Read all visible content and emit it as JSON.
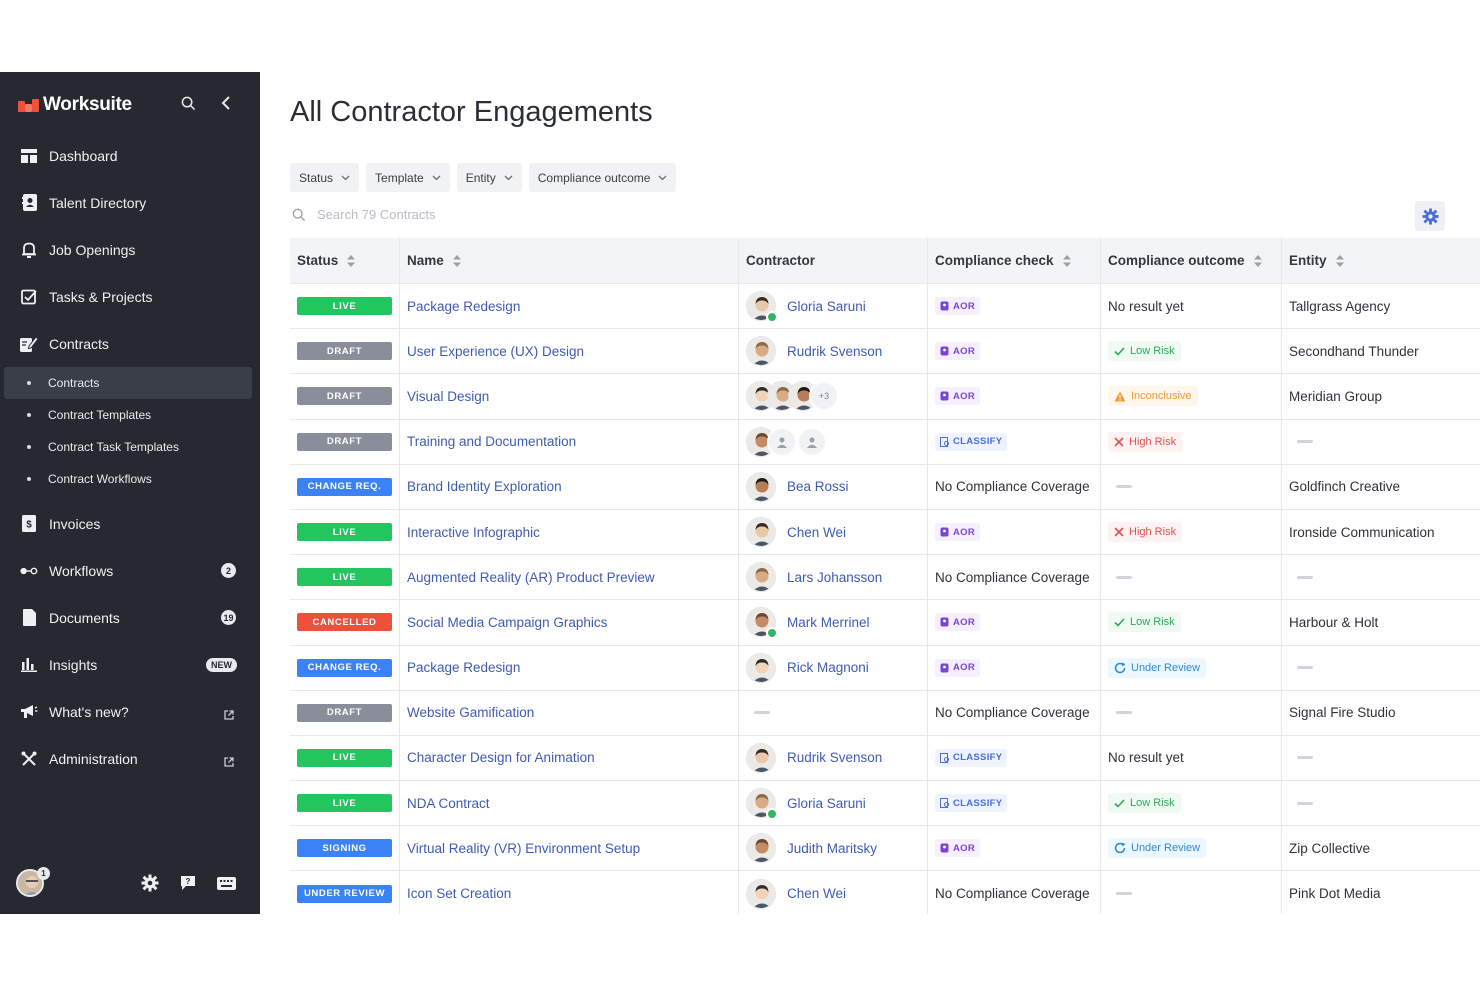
{
  "app": {
    "brand": "Worksuite",
    "page_title": "All Contractor Engagements"
  },
  "colors": {
    "sidebar_bg": "#262a30",
    "brand_accent": "#f0513d",
    "link": "#3f5bb3",
    "live": "#22c55e",
    "draft": "#8a8e9a",
    "change_req": "#3b82f6",
    "cancelled": "#f04f3c",
    "signing": "#3b82f6",
    "under_review": "#3b82f6"
  },
  "sidebar": {
    "items": [
      {
        "label": "Dashboard",
        "icon": "dashboard-icon"
      },
      {
        "label": "Talent Directory",
        "icon": "contacts-book-icon"
      },
      {
        "label": "Job Openings",
        "icon": "bell-icon"
      },
      {
        "label": "Tasks & Projects",
        "icon": "checkbox-icon"
      },
      {
        "label": "Contracts",
        "icon": "contract-signature-icon"
      }
    ],
    "sub_items": [
      {
        "label": "Contracts",
        "active": true
      },
      {
        "label": "Contract Templates",
        "active": false
      },
      {
        "label": "Contract Task Templates",
        "active": false
      },
      {
        "label": "Contract Workflows",
        "active": false
      }
    ],
    "items2": [
      {
        "label": "Invoices",
        "icon": "invoice-icon"
      },
      {
        "label": "Workflows",
        "icon": "workflow-icon",
        "badge": "2"
      },
      {
        "label": "Documents",
        "icon": "document-icon",
        "badge": "19"
      },
      {
        "label": "Insights",
        "icon": "bar-chart-icon",
        "badge": "NEW"
      },
      {
        "label": "What's new?",
        "icon": "megaphone-icon",
        "external": true
      },
      {
        "label": "Administration",
        "icon": "tools-icon",
        "external": true
      }
    ],
    "footer": {
      "notification_count": "1"
    }
  },
  "filters": [
    {
      "label": "Status"
    },
    {
      "label": "Template"
    },
    {
      "label": "Entity"
    },
    {
      "label": "Compliance outcome"
    }
  ],
  "search": {
    "placeholder": "Search 79 Contracts"
  },
  "table": {
    "headers": {
      "status": "Status",
      "name": "Name",
      "contractor": "Contractor",
      "compliance_check": "Compliance check",
      "compliance_outcome": "Compliance outcome",
      "entity": "Entity"
    },
    "rows": [
      {
        "status": "LIVE",
        "name": "Package Redesign",
        "contractor": "Gloria Saruni",
        "check": "AOR",
        "outcome": "No result yet",
        "outcome_type": "text",
        "entity": "Tallgrass Agency"
      },
      {
        "status": "DRAFT",
        "name": "User Experience (UX) Design",
        "contractor": "Rudrik Svenson",
        "check": "AOR",
        "outcome": "Low Risk",
        "outcome_type": "low",
        "entity": "Secondhand Thunder"
      },
      {
        "status": "DRAFT",
        "name": "Visual Design",
        "contractor": "",
        "contractor_more": "+3",
        "check": "AOR",
        "outcome": "Inconclusive",
        "outcome_type": "inconclusive",
        "entity": "Meridian Group"
      },
      {
        "status": "DRAFT",
        "name": "Training and Documentation",
        "contractor": "",
        "check": "CLASSIFY",
        "outcome": "High Risk",
        "outcome_type": "high",
        "entity": ""
      },
      {
        "status": "CHANGE REQ.",
        "name": "Brand Identity Exploration",
        "contractor": "Bea Rossi",
        "check": "No Compliance Coverage",
        "outcome": "",
        "outcome_type": "none",
        "entity": "Goldfinch Creative"
      },
      {
        "status": "LIVE",
        "name": "Interactive Infographic",
        "contractor": "Chen Wei",
        "check": "AOR",
        "outcome": "High Risk",
        "outcome_type": "high",
        "entity": "Ironside Communication"
      },
      {
        "status": "LIVE",
        "name": "Augmented Reality (AR) Product Preview",
        "contractor": "Lars Johansson",
        "check": "No Compliance Coverage",
        "outcome": "",
        "outcome_type": "none",
        "entity": ""
      },
      {
        "status": "CANCELLED",
        "name": "Social Media Campaign Graphics",
        "contractor": "Mark Merrinel",
        "check": "AOR",
        "outcome": "Low Risk",
        "outcome_type": "low",
        "entity": "Harbour & Holt"
      },
      {
        "status": "CHANGE REQ.",
        "name": "Package Redesign",
        "contractor": "Rick Magnoni",
        "check": "AOR",
        "outcome": "Under Review",
        "outcome_type": "review",
        "entity": ""
      },
      {
        "status": "DRAFT",
        "name": "Website Gamification",
        "contractor": "",
        "check": "No Compliance Coverage",
        "outcome": "",
        "outcome_type": "none",
        "entity": "Signal Fire Studio"
      },
      {
        "status": "LIVE",
        "name": "Character Design for Animation",
        "contractor": "Rudrik Svenson",
        "check": "CLASSIFY",
        "outcome": "No result yet",
        "outcome_type": "text",
        "entity": ""
      },
      {
        "status": "LIVE",
        "name": "NDA Contract",
        "contractor": "Gloria Saruni",
        "check": "CLASSIFY",
        "outcome": "Low Risk",
        "outcome_type": "low",
        "entity": ""
      },
      {
        "status": "SIGNING",
        "name": "Virtual Reality (VR) Environment Setup",
        "contractor": "Judith Maritsky",
        "check": "AOR",
        "outcome": "Under Review",
        "outcome_type": "review",
        "entity": "Zip Collective"
      },
      {
        "status": "UNDER REVIEW",
        "name": "Icon Set Creation",
        "contractor": "Chen Wei",
        "check": "No Compliance Coverage",
        "outcome": "",
        "outcome_type": "none",
        "entity": "Pink Dot Media"
      }
    ]
  }
}
